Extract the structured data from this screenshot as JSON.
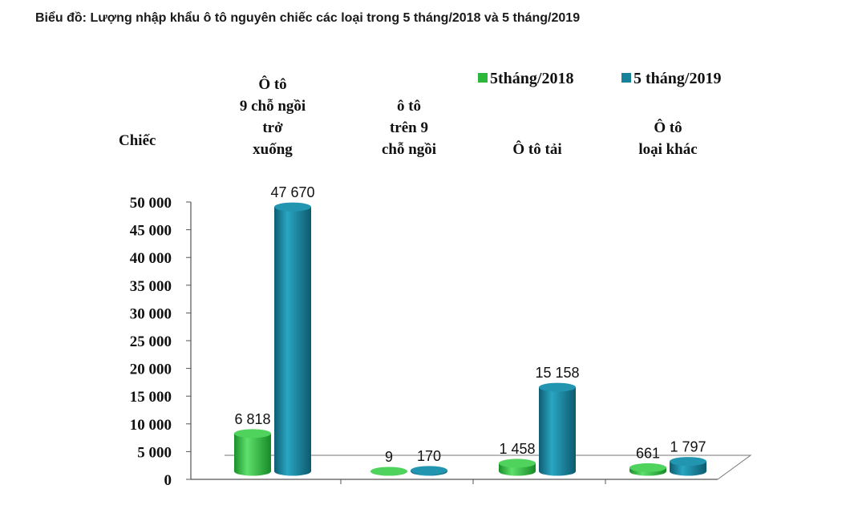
{
  "chart_data": {
    "type": "bar",
    "title": "Biểu đồ:  Lượng nhập khẩu ô tô nguyên chiếc các loại trong 5 tháng/2018 và 5 tháng/2019",
    "ylabel": "Chiếc",
    "xlabel": "",
    "ylim": [
      0,
      50000
    ],
    "yticks": [
      {
        "value": 0,
        "label": "0"
      },
      {
        "value": 5000,
        "label": "5 000"
      },
      {
        "value": 10000,
        "label": "10 000"
      },
      {
        "value": 15000,
        "label": "15 000"
      },
      {
        "value": 20000,
        "label": "20 000"
      },
      {
        "value": 25000,
        "label": "25 000"
      },
      {
        "value": 30000,
        "label": "30 000"
      },
      {
        "value": 35000,
        "label": "35 000"
      },
      {
        "value": 40000,
        "label": "40 000"
      },
      {
        "value": 45000,
        "label": "45 000"
      },
      {
        "value": 50000,
        "label": "50 000"
      }
    ],
    "categories": [
      [
        "Ô tô",
        "9 chỗ ngồi",
        "trở",
        "xuống"
      ],
      [
        "ô tô",
        "trên 9",
        "chỗ ngồi"
      ],
      [
        "Ô tô tải"
      ],
      [
        "Ô tô",
        "loại khác"
      ]
    ],
    "series": [
      {
        "name": "5tháng/2018",
        "color": "#2db83d",
        "values": [
          6818,
          9,
          1458,
          661
        ],
        "labels": [
          "6 818",
          "9",
          "1 458",
          "661"
        ]
      },
      {
        "name": "5 tháng/2019",
        "color": "#17819a",
        "values": [
          47670,
          170,
          15158,
          1797
        ],
        "labels": [
          "47 670",
          "170",
          "15 158",
          "1 797"
        ]
      }
    ],
    "legend": "top-right",
    "grid": false
  }
}
